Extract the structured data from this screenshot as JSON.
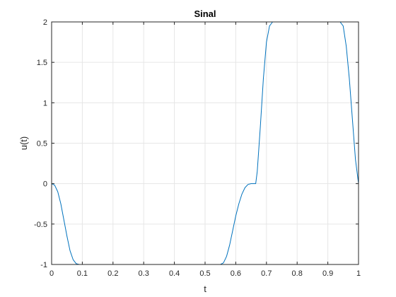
{
  "chart_data": {
    "type": "line",
    "title": "Sinal",
    "xlabel": "t",
    "ylabel": "u(t)",
    "xlim": [
      0,
      1
    ],
    "ylim": [
      -1,
      2
    ],
    "grid": true,
    "x_ticks": [
      0,
      0.1,
      0.2,
      0.3,
      0.4,
      0.5,
      0.6,
      0.7,
      0.8,
      0.9,
      1
    ],
    "x_tick_labels": [
      "0",
      "0.1",
      "0.2",
      "0.3",
      "0.4",
      "0.5",
      "0.6",
      "0.7",
      "0.8",
      "0.9",
      "1"
    ],
    "y_ticks": [
      -1,
      -0.5,
      0,
      0.5,
      1,
      1.5,
      2
    ],
    "y_tick_labels": [
      "-1",
      "-0.5",
      "0",
      "0.5",
      "1",
      "1.5",
      "2"
    ],
    "colors": {
      "line": "#0072BD",
      "grid": "#e6e6e6",
      "axes": "#262626"
    },
    "series": [
      {
        "x": [
          0,
          0.01,
          0.02,
          0.03,
          0.04,
          0.05,
          0.06,
          0.07,
          0.08,
          0.09,
          0.1,
          0.11,
          0.15,
          0.2,
          0.3,
          0.4,
          0.5,
          0.55,
          0.56,
          0.57,
          0.58,
          0.59,
          0.6,
          0.61,
          0.62,
          0.63,
          0.64,
          0.65,
          0.66,
          0.665,
          0.67,
          0.68,
          0.69,
          0.7,
          0.71,
          0.72,
          0.73,
          0.75,
          0.8,
          0.85,
          0.9,
          0.94,
          0.95,
          0.96,
          0.97,
          0.98,
          0.99,
          1.0
        ],
        "y": [
          0,
          -0.02,
          -0.1,
          -0.25,
          -0.45,
          -0.65,
          -0.83,
          -0.94,
          -0.99,
          -1,
          -1,
          -1,
          -1,
          -1,
          -1,
          -1,
          -1,
          -1,
          -0.98,
          -0.9,
          -0.76,
          -0.58,
          -0.4,
          -0.25,
          -0.13,
          -0.05,
          -0.01,
          0,
          0,
          0,
          0.15,
          0.7,
          1.3,
          1.75,
          1.95,
          2,
          2,
          2,
          2,
          2,
          2,
          2,
          1.95,
          1.7,
          1.3,
          0.8,
          0.3,
          0
        ]
      }
    ]
  }
}
